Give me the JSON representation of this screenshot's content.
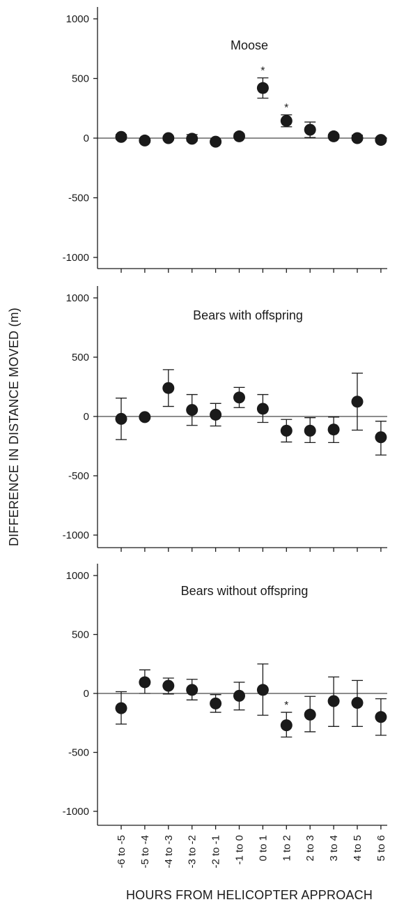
{
  "chart_data": [
    {
      "type": "scatter",
      "title": "Moose",
      "categories": [
        "-6 to -5",
        "-5 to -4",
        "-4 to -3",
        "-3 to -2",
        "-2 to -1",
        "-1 to 0",
        "0 to 1",
        "1 to 2",
        "2 to 3",
        "3 to 4",
        "4 to 5",
        "5 to 6"
      ],
      "values": [
        10,
        -20,
        0,
        -5,
        -30,
        15,
        420,
        145,
        70,
        15,
        0,
        -15
      ],
      "error_lower": [
        -10,
        -35,
        -15,
        -25,
        -45,
        0,
        335,
        95,
        5,
        0,
        -15,
        -30
      ],
      "error_upper": [
        30,
        -5,
        15,
        30,
        -15,
        35,
        505,
        195,
        135,
        30,
        25,
        5
      ],
      "significant": [
        false,
        false,
        false,
        false,
        false,
        false,
        true,
        true,
        false,
        false,
        false,
        false
      ],
      "significance_marker": "*",
      "ylim": [
        -1100,
        1100
      ],
      "yticks": [
        "1000",
        "500",
        "0",
        "-500",
        "-1000"
      ],
      "ytick_values": [
        1000,
        500,
        0,
        -500,
        -1000
      ]
    },
    {
      "type": "scatter",
      "title": "Bears with offspring",
      "categories": [
        "-6 to -5",
        "-5 to -4",
        "-4 to -3",
        "-3 to -2",
        "-2 to -1",
        "-1 to 0",
        "0 to 1",
        "1 to 2",
        "2 to 3",
        "3 to 4",
        "4 to 5",
        "5 to 6"
      ],
      "values": [
        -20,
        -5,
        240,
        55,
        15,
        160,
        65,
        -120,
        -120,
        -110,
        125,
        -175
      ],
      "error_lower": [
        -195,
        -20,
        85,
        -75,
        -80,
        75,
        -50,
        -215,
        -220,
        -220,
        -115,
        -325
      ],
      "error_upper": [
        155,
        10,
        395,
        185,
        110,
        245,
        185,
        -25,
        -10,
        -5,
        365,
        -40
      ],
      "significant": [
        false,
        false,
        false,
        false,
        false,
        false,
        false,
        false,
        false,
        false,
        false,
        false
      ],
      "significance_marker": "*",
      "ylim": [
        -1100,
        1100
      ],
      "yticks": [
        "1000",
        "500",
        "0",
        "-500",
        "-1000"
      ],
      "ytick_values": [
        1000,
        500,
        0,
        -500,
        -1000
      ]
    },
    {
      "type": "scatter",
      "title": "Bears without offspring",
      "categories": [
        "-6 to -5",
        "-5 to -4",
        "-4 to -3",
        "-3 to -2",
        "-2 to -1",
        "-1 to 0",
        "0 to 1",
        "1 to 2",
        "2 to 3",
        "3 to 4",
        "4 to 5",
        "5 to 6"
      ],
      "values": [
        -125,
        95,
        65,
        30,
        -85,
        -20,
        30,
        -270,
        -180,
        -65,
        -80,
        -200
      ],
      "error_lower": [
        -260,
        0,
        -5,
        -55,
        -160,
        -140,
        -185,
        -370,
        -325,
        -280,
        -280,
        -355
      ],
      "error_upper": [
        15,
        200,
        130,
        120,
        -10,
        95,
        250,
        -160,
        -25,
        140,
        110,
        -45
      ],
      "significant": [
        false,
        false,
        false,
        false,
        false,
        false,
        false,
        true,
        false,
        false,
        false,
        false
      ],
      "significance_marker": "*",
      "ylim": [
        -1100,
        1100
      ],
      "yticks": [
        "1000",
        "500",
        "0",
        "-500",
        "-1000"
      ],
      "ytick_values": [
        1000,
        500,
        0,
        -500,
        -1000
      ]
    }
  ],
  "shared": {
    "ylabel": "DIFFERENCE IN DISTANCE MOVED (m)",
    "xlabel": "HOURS FROM HELICOPTER APPROACH",
    "ink_color": "#1a1a1a"
  }
}
